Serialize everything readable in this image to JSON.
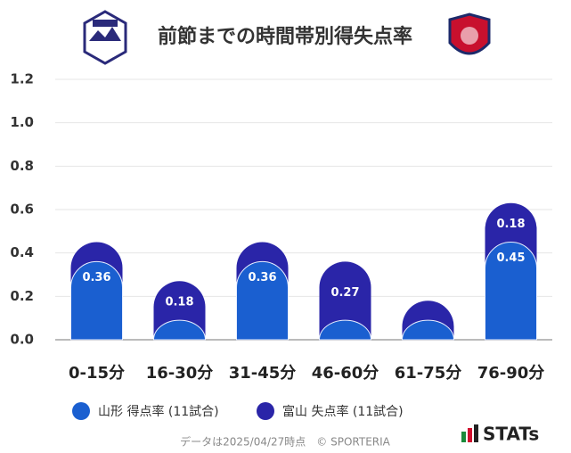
{
  "title": "前節までの時間帯別得失点率",
  "chart_data": {
    "type": "stacked_bar",
    "categories": [
      "0-15分",
      "16-30分",
      "31-45分",
      "46-60分",
      "61-75分",
      "76-90分"
    ],
    "series": [
      {
        "name": "山形 得点率 (11試合)",
        "color": "#1a5fd0",
        "values": [
          0.36,
          0.09,
          0.36,
          0.09,
          0.09,
          0.45
        ],
        "value_labels": [
          "0.36",
          null,
          "0.36",
          null,
          null,
          "0.45"
        ]
      },
      {
        "name": "富山 失点率 (11試合)",
        "color": "#2a25a8",
        "values": [
          0.09,
          0.18,
          0.09,
          0.27,
          0.09,
          0.18
        ],
        "value_labels": [
          null,
          "0.18",
          null,
          "0.27",
          null,
          "0.18"
        ]
      }
    ],
    "ylim": [
      0,
      1.2
    ],
    "yticks": [
      {
        "value": 0,
        "label": "0.0"
      },
      0.2,
      0.4,
      0.6,
      0.8,
      {
        "value": 1,
        "label": "1.0"
      },
      1.2
    ],
    "grid": true
  },
  "footer": "データは2025/04/27時点　© SPORTERIA",
  "brand": "STATs"
}
